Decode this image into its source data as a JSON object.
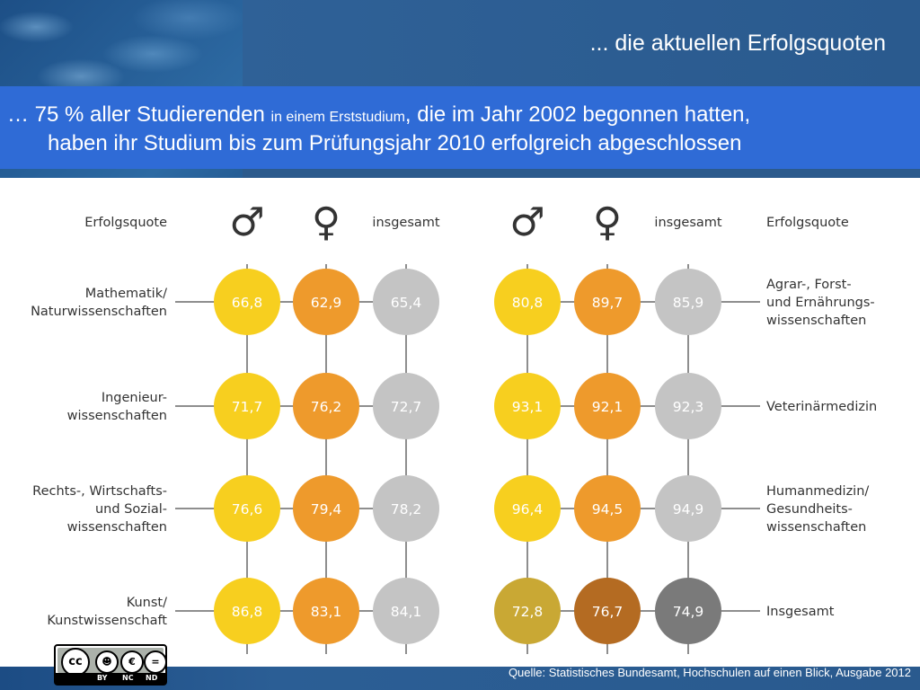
{
  "header": {
    "title": "... die aktuellen Erfolgsquoten"
  },
  "banner": {
    "line1_prefix": "…  75 % aller Studierenden ",
    "line1_small": "in einem Erststudium",
    "line1_suffix": ", die im Jahr 2002 begonnen hatten,",
    "line2": "haben ihr Studium bis zum Prüfungsjahr 2010 erfolgreich abgeschlossen"
  },
  "footer": {
    "source": "Quelle: Statistisches Bundesamt, Hochschulen auf einen Blick, Ausgabe 2012",
    "license": {
      "by": "BY",
      "nc": "NC",
      "nd": "ND",
      "cc": "cc"
    }
  },
  "colors": {
    "male": "#f7cf1f",
    "female": "#ee9a2c",
    "total": "#c4c4c4",
    "male_dark": "#c9a834",
    "female_dark": "#b46b22",
    "total_dark": "#7a7a7a",
    "line": "#8e8e8e",
    "label": "#333333",
    "value_text": "#ffffff"
  },
  "chart_data": [
    {
      "type": "table",
      "header_label": "Erfolgsquote",
      "columns": [
        {
          "key": "male",
          "symbol": "♂"
        },
        {
          "key": "female",
          "symbol": "♀"
        },
        {
          "key": "total",
          "label": "insgesamt"
        }
      ],
      "rows": [
        {
          "label": [
            "Mathematik/",
            "Naturwissenschaften"
          ],
          "values": [
            "66,8",
            "62,9",
            "65,4"
          ],
          "tone": "normal"
        },
        {
          "label": [
            "Ingenieur-",
            "wissenschaften"
          ],
          "values": [
            "71,7",
            "76,2",
            "72,7"
          ],
          "tone": "normal"
        },
        {
          "label": [
            "Rechts-, Wirtschafts-",
            "und Sozial-",
            "wissenschaften"
          ],
          "values": [
            "76,6",
            "79,4",
            "78,2"
          ],
          "tone": "normal"
        },
        {
          "label": [
            "Kunst/",
            "Kunstwissenschaft"
          ],
          "values": [
            "86,8",
            "83,1",
            "84,1"
          ],
          "tone": "normal"
        }
      ]
    },
    {
      "type": "table",
      "header_label": "Erfolgsquote",
      "columns": [
        {
          "key": "male",
          "symbol": "♂"
        },
        {
          "key": "female",
          "symbol": "♀"
        },
        {
          "key": "total",
          "label": "insgesamt"
        }
      ],
      "rows": [
        {
          "label": [
            "Agrar-, Forst-",
            "und Ernährungs-",
            "wissenschaften"
          ],
          "values": [
            "80,8",
            "89,7",
            "85,9"
          ],
          "tone": "normal"
        },
        {
          "label": [
            "Veterinärmedizin"
          ],
          "values": [
            "93,1",
            "92,1",
            "92,3"
          ],
          "tone": "normal"
        },
        {
          "label": [
            "Humanmedizin/",
            "Gesundheits-",
            "wissenschaften"
          ],
          "values": [
            "96,4",
            "94,5",
            "94,9"
          ],
          "tone": "normal"
        },
        {
          "label": [
            "Insgesamt"
          ],
          "values": [
            "72,8",
            "76,7",
            "74,9"
          ],
          "tone": "dark"
        }
      ]
    }
  ]
}
